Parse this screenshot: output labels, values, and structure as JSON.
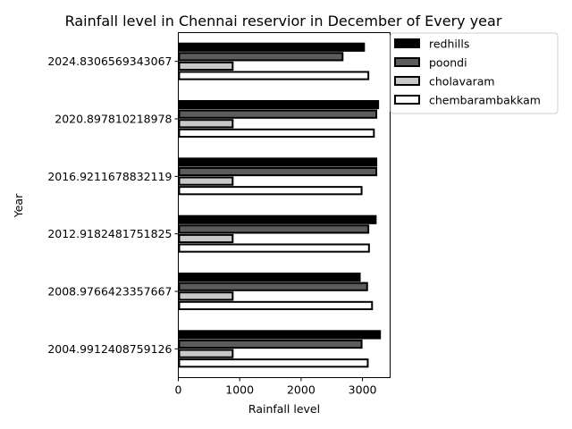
{
  "chart_data": {
    "type": "bar",
    "orientation": "horizontal",
    "title": "Rainfall level in Chennai reservior in December of Every year",
    "xlabel": "Rainfall level",
    "ylabel": "Year",
    "xlim": [
      0,
      3450
    ],
    "xticks": [
      "0",
      "1000",
      "2000",
      "3000"
    ],
    "categories": [
      "2004.9912408759126",
      "2008.9766423357667",
      "2012.9182481751825",
      "2016.9211678832119",
      "2020.897810218978",
      "2024.8306569343067"
    ],
    "series": [
      {
        "name": "redhills",
        "color": "#000000",
        "values": [
          3300,
          2970,
          3230,
          3240,
          3270,
          3040
        ]
      },
      {
        "name": "poondi",
        "color": "#5c5c5c",
        "values": [
          3000,
          3090,
          3110,
          3240,
          3240,
          2690
        ]
      },
      {
        "name": "cholavaram",
        "color": "#c8c8c8",
        "values": [
          900,
          900,
          900,
          900,
          900,
          900
        ]
      },
      {
        "name": "chembarambakkam",
        "color": "#ffffff",
        "values": [
          3100,
          3170,
          3120,
          3000,
          3200,
          3110
        ]
      }
    ],
    "legend": "upper-right-outside",
    "grid": false
  }
}
